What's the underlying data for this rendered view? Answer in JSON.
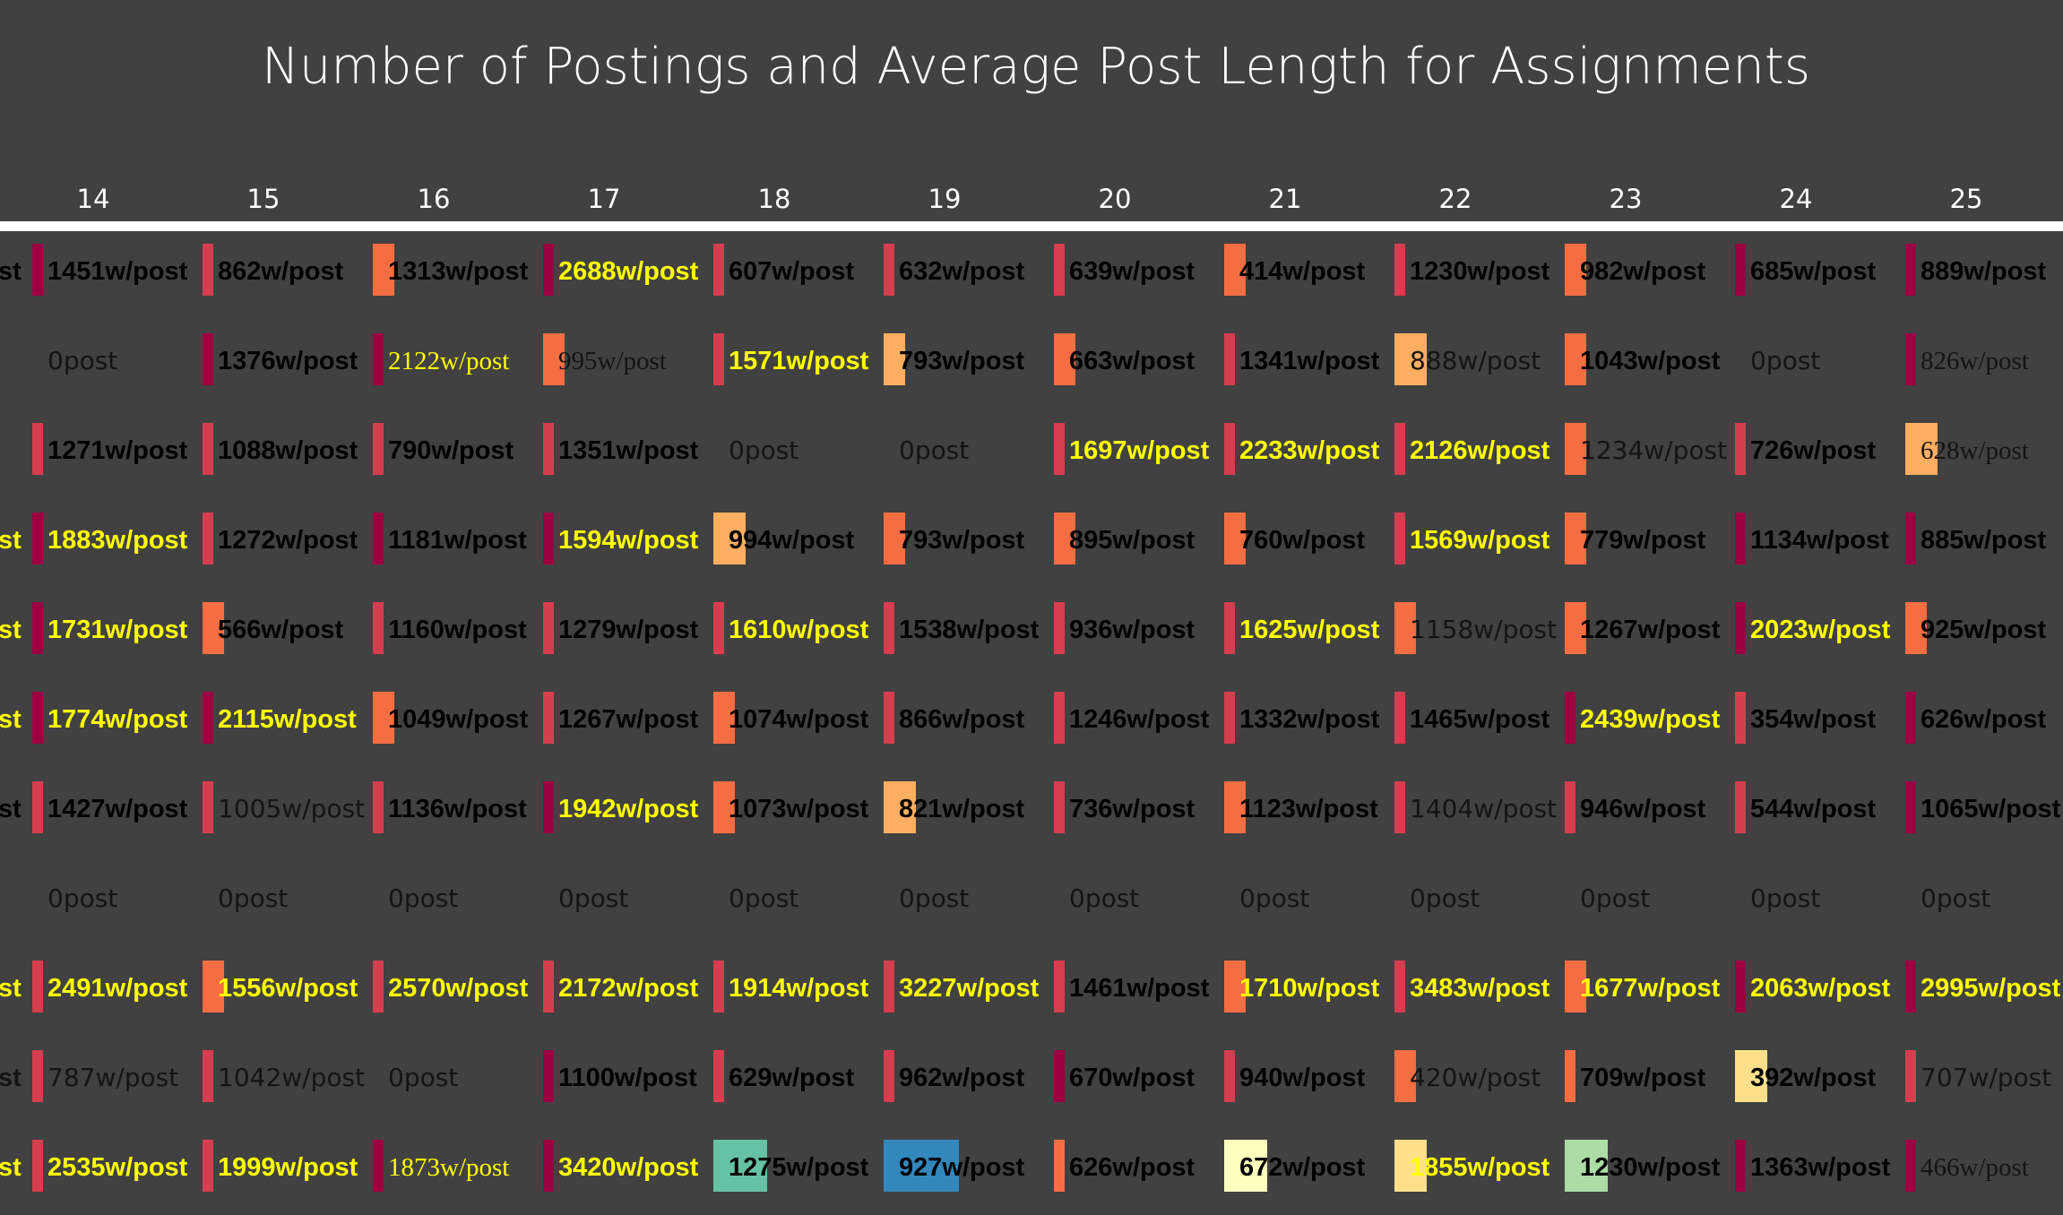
{
  "chart_data": {
    "type": "table",
    "title": "Number of Postings and Average Post Length for Assignments",
    "columns": [
      "14",
      "15",
      "16",
      "17",
      "18",
      "19",
      "20",
      "21",
      "22",
      "23",
      "24",
      "25"
    ],
    "left_cut_labels": [
      "st",
      "",
      "",
      "st",
      "st",
      "st",
      "st",
      "",
      "st",
      "st",
      "st"
    ],
    "rows": [
      [
        "1451w/post",
        "862w/post",
        "1313w/post",
        "2688w/post",
        "607w/post",
        "632w/post",
        "639w/post",
        "414w/post",
        "1230w/post",
        "982w/post",
        "685w/post",
        "889w/post"
      ],
      [
        "0post",
        "1376w/post",
        "2122w/post",
        "995w/post",
        "1571w/post",
        "793w/post",
        "663w/post",
        "1341w/post",
        "888w/post",
        "1043w/post",
        "0post",
        "826w/post"
      ],
      [
        "1271w/post",
        "1088w/post",
        "790w/post",
        "1351w/post",
        "0post",
        "0post",
        "1697w/post",
        "2233w/post",
        "2126w/post",
        "1234w/post",
        "726w/post",
        "628w/post"
      ],
      [
        "1883w/post",
        "1272w/post",
        "1181w/post",
        "1594w/post",
        "994w/post",
        "793w/post",
        "895w/post",
        "760w/post",
        "1569w/post",
        "779w/post",
        "1134w/post",
        "885w/post"
      ],
      [
        "1731w/post",
        "566w/post",
        "1160w/post",
        "1279w/post",
        "1610w/post",
        "1538w/post",
        "936w/post",
        "1625w/post",
        "1158w/post",
        "1267w/post",
        "2023w/post",
        "925w/post"
      ],
      [
        "1774w/post",
        "2115w/post",
        "1049w/post",
        "1267w/post",
        "1074w/post",
        "866w/post",
        "1246w/post",
        "1332w/post",
        "1465w/post",
        "2439w/post",
        "354w/post",
        "626w/post"
      ],
      [
        "1427w/post",
        "1005w/post",
        "1136w/post",
        "1942w/post",
        "1073w/post",
        "821w/post",
        "736w/post",
        "1123w/post",
        "1404w/post",
        "946w/post",
        "544w/post",
        "1065w/post"
      ],
      [
        "0post",
        "0post",
        "0post",
        "0post",
        "0post",
        "0post",
        "0post",
        "0post",
        "0post",
        "0post",
        "0post",
        "0post"
      ],
      [
        "2491w/post",
        "1556w/post",
        "2570w/post",
        "2172w/post",
        "1914w/post",
        "3227w/post",
        "1461w/post",
        "1710w/post",
        "3483w/post",
        "1677w/post",
        "2063w/post",
        "2995w/post"
      ],
      [
        "787w/post",
        "1042w/post",
        "0post",
        "1100w/post",
        "629w/post",
        "962w/post",
        "670w/post",
        "940w/post",
        "420w/post",
        "709w/post",
        "392w/post",
        "707w/post"
      ],
      [
        "2535w/post",
        "1999w/post",
        "1873w/post",
        "3420w/post",
        "1275w/post",
        "927w/post",
        "626w/post",
        "672w/post",
        "1855w/post",
        "1230w/post",
        "1363w/post",
        "466w/post"
      ]
    ],
    "bar_widths": [
      [
        1,
        1,
        2,
        1,
        1,
        1,
        1,
        2,
        1,
        2,
        1,
        1
      ],
      [
        0,
        1,
        1,
        2,
        1,
        2,
        2,
        1,
        3,
        2,
        0,
        1
      ],
      [
        1,
        1,
        1,
        1,
        0,
        0,
        1,
        1,
        1,
        2,
        1,
        3
      ],
      [
        1,
        1,
        1,
        1,
        3,
        2,
        2,
        2,
        1,
        2,
        1,
        1
      ],
      [
        1,
        2,
        1,
        1,
        1,
        1,
        1,
        1,
        2,
        2,
        1,
        2
      ],
      [
        1,
        1,
        2,
        1,
        2,
        1,
        1,
        1,
        1,
        1,
        1,
        1
      ],
      [
        1,
        1,
        1,
        1,
        2,
        3,
        1,
        2,
        1,
        1,
        1,
        1
      ],
      [
        0,
        0,
        0,
        0,
        0,
        0,
        0,
        0,
        0,
        0,
        0,
        0
      ],
      [
        1,
        2,
        1,
        1,
        1,
        1,
        1,
        2,
        1,
        2,
        1,
        1
      ],
      [
        1,
        1,
        0,
        1,
        1,
        1,
        1,
        1,
        2,
        1,
        3,
        1
      ],
      [
        1,
        1,
        1,
        1,
        5,
        7,
        1,
        4,
        3,
        4,
        1,
        1
      ]
    ],
    "bar_colors": [
      [
        "#9e0142",
        "#d53e4f",
        "#f46d43",
        "#9e0142",
        "#d53e4f",
        "#d53e4f",
        "#d53e4f",
        "#f46d43",
        "#d53e4f",
        "#f46d43",
        "#9e0142",
        "#9e0142"
      ],
      [
        "",
        "#9e0142",
        "#9e0142",
        "#f46d43",
        "#d53e4f",
        "#fdae61",
        "#f46d43",
        "#d53e4f",
        "#fdae61",
        "#f46d43",
        "",
        "#9e0142"
      ],
      [
        "#d53e4f",
        "#d53e4f",
        "#d53e4f",
        "#d53e4f",
        "",
        "",
        "#d53e4f",
        "#d53e4f",
        "#d53e4f",
        "#f46d43",
        "#d53e4f",
        "#fdae61"
      ],
      [
        "#9e0142",
        "#d53e4f",
        "#9e0142",
        "#9e0142",
        "#fdae61",
        "#f46d43",
        "#f46d43",
        "#f46d43",
        "#d53e4f",
        "#f46d43",
        "#9e0142",
        "#9e0142"
      ],
      [
        "#9e0142",
        "#f46d43",
        "#d53e4f",
        "#d53e4f",
        "#d53e4f",
        "#d53e4f",
        "#d53e4f",
        "#d53e4f",
        "#f46d43",
        "#f46d43",
        "#9e0142",
        "#f46d43"
      ],
      [
        "#9e0142",
        "#9e0142",
        "#f46d43",
        "#d53e4f",
        "#f46d43",
        "#d53e4f",
        "#d53e4f",
        "#d53e4f",
        "#d53e4f",
        "#9e0142",
        "#d53e4f",
        "#9e0142"
      ],
      [
        "#d53e4f",
        "#d53e4f",
        "#d53e4f",
        "#9e0142",
        "#f46d43",
        "#fdae61",
        "#d53e4f",
        "#f46d43",
        "#d53e4f",
        "#d53e4f",
        "#d53e4f",
        "#9e0142"
      ],
      [
        "",
        "",
        "",
        "",
        "",
        "",
        "",
        "",
        "",
        "",
        "",
        ""
      ],
      [
        "#d53e4f",
        "#f46d43",
        "#d53e4f",
        "#d53e4f",
        "#d53e4f",
        "#d53e4f",
        "#d53e4f",
        "#f46d43",
        "#d53e4f",
        "#f46d43",
        "#9e0142",
        "#9e0142"
      ],
      [
        "#d53e4f",
        "#d53e4f",
        "",
        "#9e0142",
        "#d53e4f",
        "#d53e4f",
        "#9e0142",
        "#d53e4f",
        "#f46d43",
        "#f46d43",
        "#fee08b",
        "#d53e4f"
      ],
      [
        "#d53e4f",
        "#d53e4f",
        "#9e0142",
        "#9e0142",
        "#66c2a5",
        "#3288bd",
        "#f46d43",
        "#ffffbf",
        "#fee08b",
        "#abdda4",
        "#9e0142",
        "#9e0142"
      ]
    ],
    "text_styles": [
      [
        "b",
        "b",
        "b",
        "y",
        "b",
        "b",
        "b",
        "b",
        "b",
        "b",
        "b",
        "b"
      ],
      [
        "l",
        "b",
        "s",
        "w",
        "y",
        "b",
        "b",
        "b",
        "l",
        "b",
        "l",
        "w"
      ],
      [
        "b",
        "b",
        "b",
        "b",
        "l",
        "l",
        "y",
        "y",
        "y",
        "l",
        "b",
        "w"
      ],
      [
        "y",
        "b",
        "b",
        "y",
        "b",
        "b",
        "b",
        "b",
        "y",
        "b",
        "b",
        "b"
      ],
      [
        "y",
        "b",
        "b",
        "b",
        "y",
        "b",
        "b",
        "y",
        "l",
        "b",
        "y",
        "b"
      ],
      [
        "y",
        "y",
        "b",
        "b",
        "b",
        "b",
        "b",
        "b",
        "b",
        "y",
        "b",
        "b"
      ],
      [
        "b",
        "l",
        "b",
        "y",
        "b",
        "b",
        "b",
        "b",
        "l",
        "b",
        "b",
        "b"
      ],
      [
        "l",
        "l",
        "l",
        "l",
        "l",
        "l",
        "l",
        "l",
        "l",
        "l",
        "l",
        "l"
      ],
      [
        "y",
        "y",
        "y",
        "y",
        "y",
        "y",
        "b",
        "y",
        "y",
        "y",
        "y",
        "y"
      ],
      [
        "l",
        "l",
        "l",
        "b",
        "b",
        "b",
        "b",
        "b",
        "l",
        "b",
        "b",
        "l"
      ],
      [
        "y",
        "y",
        "s",
        "y",
        "b",
        "b",
        "b",
        "b",
        "y",
        "b",
        "b",
        "w"
      ]
    ],
    "style_key": {
      "b": "bold black sans",
      "y": "bold yellow sans",
      "l": "light dark sans",
      "s": "yellow serif",
      "w": "black serif"
    },
    "background_color": "#414141",
    "header_line_color": "#ffffff"
  }
}
